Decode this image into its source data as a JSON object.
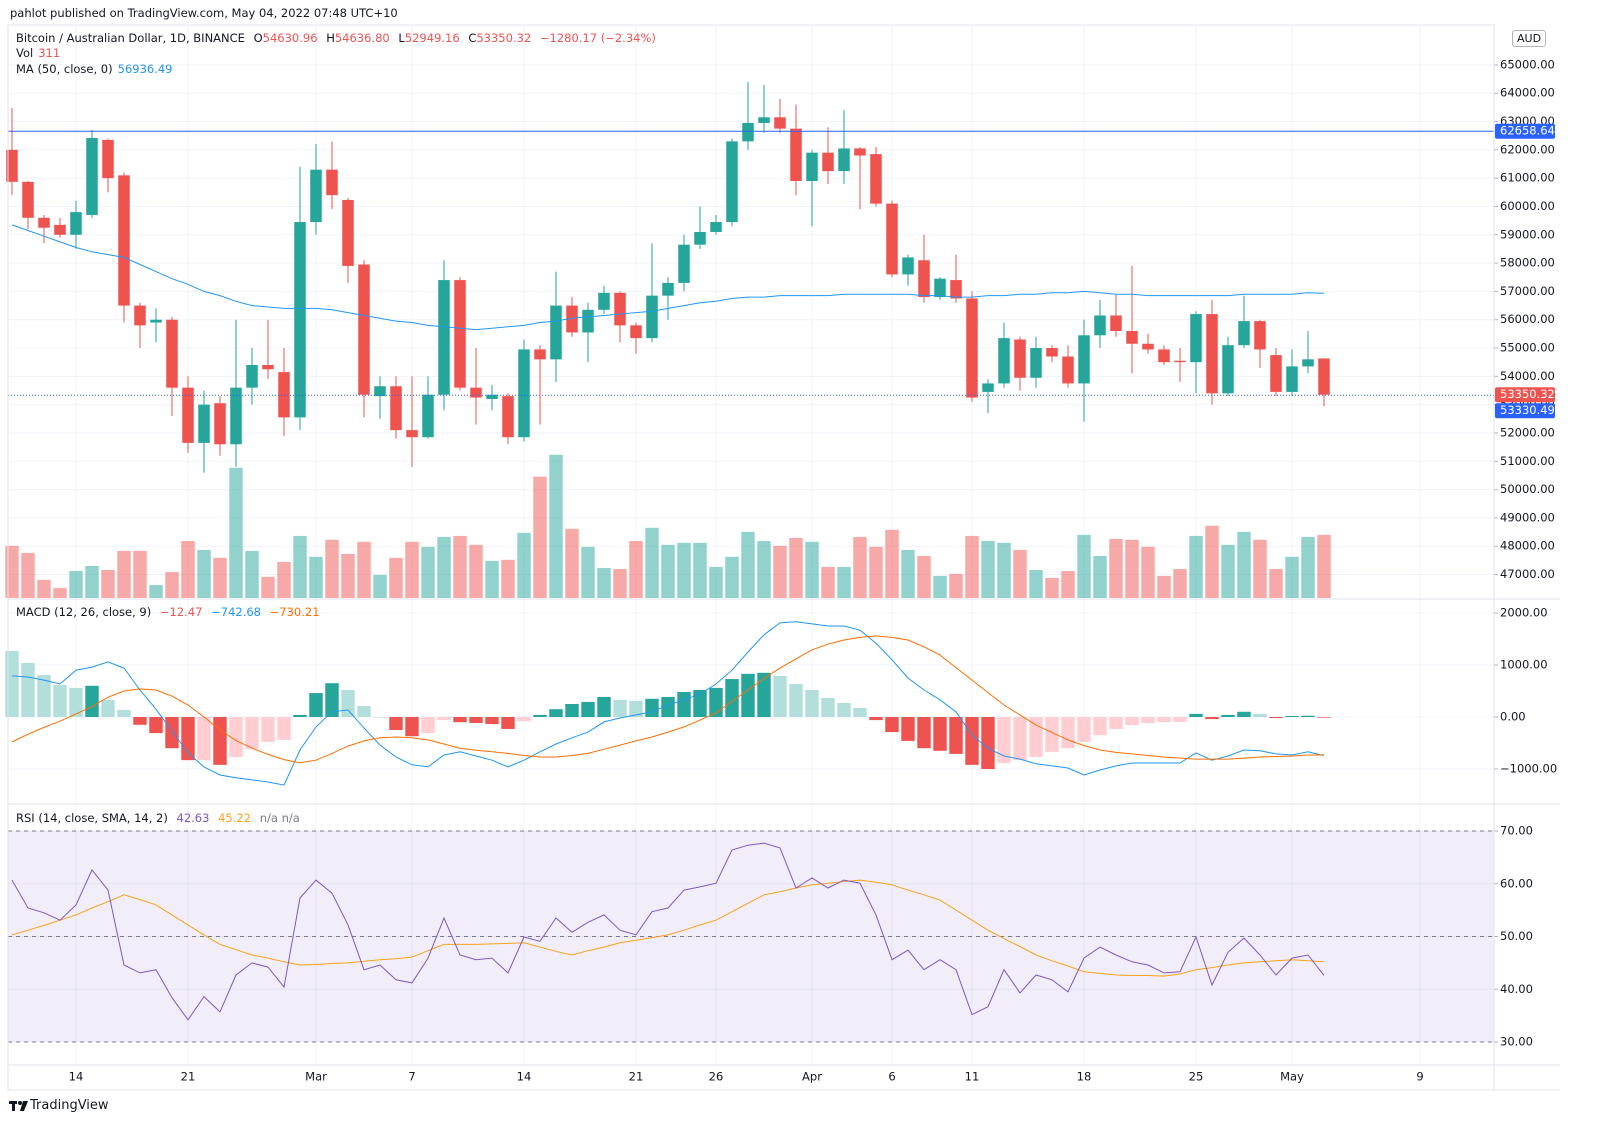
{
  "header": {
    "published": "pahlot published on TradingView.com, May 04, 2022 07:48 UTC+10"
  },
  "footer": "TradingView",
  "chart_data": [
    {
      "type": "candlestick",
      "title": "Bitcoin / Australian Dollar, 1D, BINANCE",
      "currency": "AUD",
      "legend": {
        "items": [
          {
            "key": "O",
            "text": "54630.96"
          },
          {
            "key": "H",
            "text": "54636.80"
          },
          {
            "key": "L",
            "text": "52949.16"
          },
          {
            "key": "C",
            "text": "53350.32"
          }
        ],
        "change": "−1280.17 (−2.34%)"
      },
      "up_color": "#26a69a",
      "down_color": "#ef5350",
      "open": [
        62000,
        60870,
        59600,
        59350,
        59000,
        59700,
        62350,
        61100,
        56500,
        55900,
        56000,
        53600,
        51650,
        53050,
        51600,
        53600,
        54400,
        54150,
        52550,
        59450,
        61300,
        60230,
        57950,
        53300,
        53650,
        52100,
        51850,
        53350,
        57400,
        53600,
        53200,
        53300,
        51850,
        54950,
        54600,
        56500,
        55550,
        56350,
        56950,
        55800,
        55350,
        56850,
        57300,
        58650,
        59100,
        59450,
        62300,
        62950,
        63150,
        62750,
        60900,
        61900,
        61250,
        62050,
        61850,
        60100,
        57600,
        58100,
        56800,
        57400,
        56750,
        53450,
        53750,
        55300,
        53950,
        55000,
        54700,
        53750,
        55450,
        56150,
        55600,
        55150,
        54950,
        54550,
        54500,
        56200,
        53400,
        55100,
        55950,
        54750,
        53450,
        54350,
        54630.96
      ],
      "high": [
        63480,
        60900,
        59700,
        59600,
        60200,
        62700,
        62400,
        61200,
        56600,
        56400,
        56100,
        54000,
        53500,
        53300,
        56000,
        55000,
        56000,
        55000,
        61400,
        62200,
        62300,
        60300,
        58100,
        54000,
        54000,
        54000,
        54000,
        58100,
        57500,
        55000,
        53700,
        53400,
        55300,
        55100,
        57700,
        56800,
        56600,
        57200,
        57000,
        55900,
        58700,
        57500,
        59000,
        60000,
        59700,
        62400,
        64400,
        64300,
        63800,
        63600,
        62000,
        62800,
        63400,
        62100,
        62100,
        60200,
        58300,
        59000,
        57500,
        58300,
        57000,
        53900,
        55900,
        55400,
        55400,
        55100,
        55100,
        56000,
        56700,
        56900,
        57900,
        55500,
        55100,
        55000,
        56300,
        56700,
        55400,
        56850,
        56000,
        55000,
        54950,
        55600,
        54636.8
      ],
      "low": [
        60400,
        59200,
        58700,
        58900,
        58500,
        59600,
        60500,
        55900,
        55000,
        55200,
        52600,
        51300,
        50600,
        51200,
        50800,
        53000,
        53900,
        51900,
        52100,
        59000,
        59900,
        57300,
        52550,
        52500,
        51800,
        50800,
        51800,
        52800,
        53500,
        52300,
        52800,
        51600,
        51700,
        52300,
        53800,
        55400,
        54500,
        56200,
        55200,
        54800,
        55200,
        56000,
        57000,
        58500,
        59000,
        59300,
        62000,
        62600,
        62600,
        60400,
        59300,
        60800,
        60800,
        59900,
        60000,
        57500,
        57200,
        56600,
        56700,
        56600,
        53100,
        52700,
        53600,
        53500,
        53600,
        54500,
        53600,
        52400,
        55000,
        55400,
        54100,
        54800,
        54400,
        53800,
        53400,
        53000,
        53300,
        55000,
        54300,
        53300,
        53300,
        54100,
        52949.16
      ],
      "close": [
        60870,
        59600,
        59250,
        59000,
        59800,
        62420,
        61000,
        56500,
        55800,
        56000,
        53600,
        51650,
        53000,
        51600,
        53600,
        54400,
        54250,
        52550,
        59450,
        61300,
        60400,
        57900,
        53350,
        53650,
        52100,
        51850,
        53350,
        57400,
        53600,
        53250,
        53350,
        51850,
        54950,
        54600,
        56500,
        55550,
        56350,
        56950,
        55800,
        55350,
        56850,
        57300,
        58650,
        59100,
        59450,
        62300,
        62950,
        63150,
        62750,
        60900,
        61900,
        61250,
        62050,
        61800,
        60100,
        57600,
        58200,
        56800,
        57450,
        56750,
        53250,
        53750,
        55350,
        53950,
        55000,
        54700,
        53750,
        55450,
        56150,
        55600,
        55150,
        54950,
        54500,
        54500,
        56200,
        53400,
        55100,
        55950,
        54950,
        53450,
        54350,
        54600,
        53350.32
      ],
      "volume": {
        "name": "Vol",
        "up_color": "rgba(38,166,154,0.5)",
        "down_color": "rgba(239,83,80,0.5)",
        "values": [
          257,
          222,
          89,
          49,
          133,
          158,
          138,
          232,
          232,
          64,
          128,
          281,
          237,
          198,
          642,
          232,
          104,
          178,
          306,
          203,
          287,
          217,
          277,
          114,
          198,
          277,
          252,
          301,
          306,
          262,
          183,
          188,
          321,
          598,
          706,
          341,
          252,
          148,
          143,
          281,
          346,
          262,
          272,
          272,
          153,
          203,
          326,
          281,
          257,
          296,
          277,
          153,
          153,
          301,
          252,
          336,
          237,
          207,
          109,
          119,
          306,
          281,
          272,
          237,
          138,
          99,
          133,
          311,
          207,
          291,
          287,
          252,
          109,
          143,
          306,
          356,
          262,
          326,
          287,
          143,
          203,
          301,
          311
        ]
      },
      "ma": {
        "name": "MA (50, close, 0)",
        "color": "#2196f3",
        "values": [
          59350,
          59150,
          58950,
          58750,
          58550,
          58400,
          58300,
          58200,
          57950,
          57700,
          57450,
          57250,
          57000,
          56850,
          56650,
          56500,
          56450,
          56400,
          56400,
          56400,
          56350,
          56250,
          56150,
          56050,
          55950,
          55900,
          55800,
          55750,
          55700,
          55650,
          55700,
          55750,
          55800,
          55900,
          55950,
          56050,
          56100,
          56150,
          56200,
          56250,
          56300,
          56400,
          56500,
          56600,
          56650,
          56750,
          56800,
          56800,
          56850,
          56850,
          56850,
          56850,
          56900,
          56900,
          56900,
          56900,
          56900,
          56850,
          56850,
          56800,
          56800,
          56850,
          56850,
          56900,
          56900,
          56950,
          56950,
          57000,
          56950,
          56900,
          56900,
          56850,
          56850,
          56850,
          56850,
          56850,
          56850,
          56900,
          56900,
          56900,
          56900,
          56950,
          56936.49
        ]
      },
      "price_lines": [
        {
          "value": 62658.64,
          "color": "#2962ff",
          "style": "solid"
        },
        {
          "value": 53330.49,
          "color": "#2962ff",
          "style": "dotted"
        }
      ],
      "ylim": [
        46170,
        66410
      ],
      "yticks": [
        {
          "value": 47000,
          "label": "47000.00"
        },
        {
          "value": 48000,
          "label": "48000.00"
        },
        {
          "value": 49000,
          "label": "49000.00"
        },
        {
          "value": 50000,
          "label": "50000.00"
        },
        {
          "value": 51000,
          "label": "51000.00"
        },
        {
          "value": 52000,
          "label": "52000.00"
        },
        {
          "value": 53000,
          "label": "53000.00"
        },
        {
          "value": 54000,
          "label": "54000.00"
        },
        {
          "value": 55000,
          "label": "55000.00"
        },
        {
          "value": 56000,
          "label": "56000.00"
        },
        {
          "value": 57000,
          "label": "57000.00"
        },
        {
          "value": 58000,
          "label": "58000.00"
        },
        {
          "value": 59000,
          "label": "59000.00"
        },
        {
          "value": 60000,
          "label": "60000.00"
        },
        {
          "value": 61000,
          "label": "61000.00"
        },
        {
          "value": 62000,
          "label": "62000.00"
        },
        {
          "value": 63000,
          "label": "63000.00"
        },
        {
          "value": 64000,
          "label": "64000.00"
        },
        {
          "value": 65000,
          "label": "65000.00"
        }
      ],
      "xlim": [
        -0.25,
        92.625
      ],
      "xticks": [
        {
          "value": 4,
          "label": "14"
        },
        {
          "value": 11,
          "label": "21"
        },
        {
          "value": 19,
          "label": "Mar"
        },
        {
          "value": 25,
          "label": "7"
        },
        {
          "value": 32,
          "label": "14"
        },
        {
          "value": 39,
          "label": "21"
        },
        {
          "value": 44,
          "label": "26"
        },
        {
          "value": 50,
          "label": "Apr"
        },
        {
          "value": 55,
          "label": "6"
        },
        {
          "value": 60,
          "label": "11"
        },
        {
          "value": 67,
          "label": "18"
        },
        {
          "value": 74,
          "label": "25"
        },
        {
          "value": 80,
          "label": "May"
        },
        {
          "value": 88,
          "label": "9"
        }
      ],
      "grid": true
    },
    {
      "type": "macd",
      "title": "MACD (12, 26, close, 9)",
      "legend_labels": [
        "−12.47",
        "−742.68",
        "−730.21"
      ],
      "histogram": {
        "colors": [
          "#26a69a",
          "#b2dfdb",
          "#ffcdd2",
          "#ef5350"
        ],
        "values": [
          1270,
          1040,
          810,
          615,
          560,
          600,
          330,
          135,
          -150,
          -310,
          -600,
          -830,
          -830,
          -920,
          -770,
          -620,
          -480,
          -440,
          40,
          460,
          650,
          520,
          210,
          0,
          -250,
          -370,
          -310,
          -60,
          -100,
          -115,
          -135,
          -230,
          -80,
          40,
          150,
          250,
          290,
          385,
          330,
          310,
          350,
          385,
          480,
          520,
          560,
          730,
          830,
          850,
          790,
          635,
          520,
          365,
          270,
          175,
          -60,
          -290,
          -460,
          -600,
          -650,
          -710,
          -920,
          -1000,
          -885,
          -830,
          -770,
          -670,
          -600,
          -480,
          -350,
          -230,
          -155,
          -115,
          -100,
          -95,
          60,
          -40,
          40,
          100,
          60,
          -20,
          20,
          25,
          -12.47
        ]
      },
      "macd": {
        "color": "#2196f3",
        "values": [
          790,
          770,
          710,
          635,
          900,
          960,
          1060,
          940,
          520,
          150,
          -270,
          -690,
          -960,
          -1115,
          -1170,
          -1210,
          -1250,
          -1310,
          -635,
          -190,
          100,
          135,
          -210,
          -540,
          -770,
          -920,
          -960,
          -730,
          -670,
          -750,
          -830,
          -960,
          -830,
          -670,
          -520,
          -400,
          -290,
          -95,
          -20,
          40,
          100,
          230,
          330,
          440,
          635,
          900,
          1250,
          1580,
          1810,
          1830,
          1790,
          1750,
          1750,
          1670,
          1420,
          1100,
          750,
          520,
          330,
          100,
          -350,
          -600,
          -750,
          -810,
          -900,
          -940,
          -980,
          -1115,
          -1020,
          -940,
          -885,
          -885,
          -885,
          -885,
          -690,
          -830,
          -750,
          -635,
          -650,
          -710,
          -730,
          -670,
          -742.68
        ]
      },
      "signal": {
        "color": "#ff6d00",
        "values": [
          -480,
          -330,
          -200,
          -80,
          60,
          200,
          380,
          500,
          540,
          520,
          400,
          230,
          0,
          -250,
          -450,
          -600,
          -720,
          -820,
          -880,
          -830,
          -700,
          -560,
          -460,
          -400,
          -385,
          -400,
          -440,
          -520,
          -600,
          -640,
          -670,
          -700,
          -740,
          -770,
          -770,
          -740,
          -700,
          -620,
          -540,
          -460,
          -385,
          -290,
          -190,
          -60,
          80,
          300,
          520,
          740,
          940,
          1120,
          1290,
          1400,
          1480,
          1530,
          1560,
          1530,
          1480,
          1350,
          1190,
          950,
          710,
          470,
          230,
          40,
          -155,
          -300,
          -440,
          -550,
          -635,
          -680,
          -710,
          -740,
          -770,
          -790,
          -810,
          -810,
          -810,
          -790,
          -770,
          -760,
          -750,
          -730,
          -730.21
        ]
      },
      "ylim": [
        -1654,
        2250
      ],
      "yticks": [
        {
          "value": 2000,
          "label": "2000.00"
        },
        {
          "value": 1000,
          "label": "1000.00"
        },
        {
          "value": 0,
          "label": "0.00"
        },
        {
          "value": -1000,
          "label": "−1000.00"
        }
      ],
      "grid": true
    },
    {
      "type": "rsi",
      "title": "RSI (14, close, SMA, 14, 2)",
      "na_text": "n/a n/a",
      "rsi": {
        "color": "#7e57c2",
        "values": [
          60.7,
          55.4,
          54.5,
          53.1,
          56,
          62.6,
          58.8,
          44.6,
          43.1,
          43.7,
          38.4,
          34.2,
          38.6,
          35.7,
          42.7,
          45,
          44.2,
          40.4,
          57.3,
          60.7,
          58.2,
          52.2,
          43.7,
          44.6,
          41.8,
          41.2,
          45.9,
          53.5,
          46.5,
          45.6,
          45.9,
          43.1,
          49.9,
          49.1,
          53.5,
          50.8,
          52.7,
          54.1,
          51.2,
          50.3,
          54.7,
          55.4,
          58.8,
          59.4,
          60.1,
          66.4,
          67.3,
          67.7,
          66.8,
          59.2,
          61.1,
          59.2,
          60.7,
          60.1,
          54.1,
          45.6,
          47.4,
          43.7,
          45.6,
          43.7,
          35.2,
          36.7,
          43.7,
          39.3,
          42.7,
          41.8,
          39.5,
          45.9,
          48,
          46.5,
          45.2,
          44.6,
          43.1,
          43.3,
          49.9,
          40.8,
          47,
          49.7,
          46.5,
          42.7,
          45.9,
          46.5,
          42.63
        ]
      },
      "sma": {
        "color": "#f7a21b",
        "values": [
          50.3,
          51.2,
          52.1,
          53.1,
          54.1,
          55.4,
          56.6,
          57.9,
          57,
          56,
          54.1,
          52.2,
          50.3,
          48.5,
          47.5,
          46.5,
          45.9,
          45.2,
          44.6,
          44.7,
          44.9,
          45,
          45.3,
          45.6,
          45.8,
          46.1,
          47.3,
          48.5,
          48.5,
          48.5,
          48.6,
          48.7,
          48.8,
          48,
          47.2,
          46.5,
          47.3,
          48,
          48.8,
          49.3,
          49.8,
          50.3,
          51.2,
          52.2,
          53.1,
          54.7,
          56.3,
          57.9,
          58.5,
          59.2,
          59.8,
          60.1,
          60.4,
          60.7,
          60.3,
          59.8,
          58.8,
          57.9,
          56.9,
          55,
          53.1,
          51.2,
          49.6,
          48.1,
          46.5,
          45.4,
          44.4,
          43.3,
          43,
          42.7,
          42.6,
          42.6,
          42.5,
          42.9,
          43.7,
          44.1,
          44.6,
          45,
          45.2,
          45.4,
          45.6,
          45.4,
          45.22
        ]
      },
      "levels": [
        30,
        50,
        70
      ],
      "band_color": "rgba(126,87,194,0.1)",
      "ylim": [
        25.64,
        74.93
      ],
      "yticks": [
        {
          "value": 70,
          "label": "70.00"
        },
        {
          "value": 60,
          "label": "60.00"
        },
        {
          "value": 50,
          "label": "50.00"
        },
        {
          "value": 40,
          "label": "40.00"
        },
        {
          "value": 30,
          "label": "30.00"
        }
      ],
      "grid": true
    }
  ]
}
